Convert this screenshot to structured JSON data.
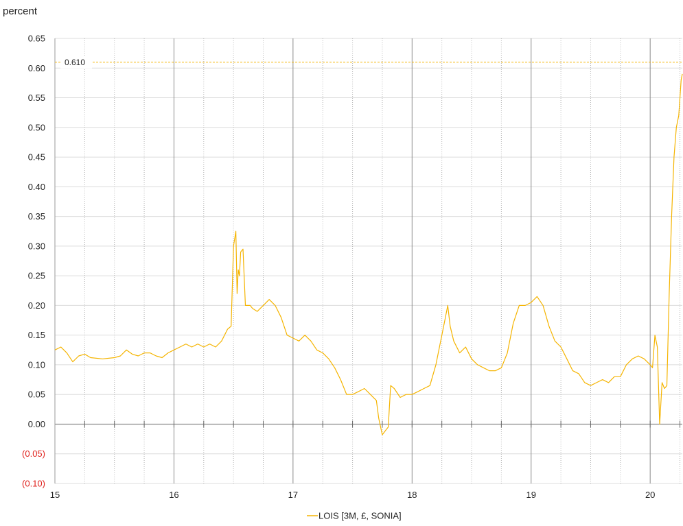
{
  "chart_data": {
    "type": "line",
    "ylabel": "percent",
    "xlim": [
      15,
      20.27
    ],
    "ylim": [
      -0.1,
      0.65
    ],
    "x_ticks": [
      15,
      16,
      17,
      18,
      19,
      20
    ],
    "x_tick_labels": [
      "15",
      "16",
      "17",
      "18",
      "19",
      "20"
    ],
    "x_minor_step": 0.25,
    "y_ticks": [
      0.65,
      0.6,
      0.55,
      0.5,
      0.45,
      0.4,
      0.35,
      0.3,
      0.25,
      0.2,
      0.15,
      0.1,
      0.05,
      0.0,
      -0.05,
      -0.1
    ],
    "y_tick_labels": [
      "0.65",
      "0.60",
      "0.55",
      "0.50",
      "0.45",
      "0.40",
      "0.35",
      "0.30",
      "0.25",
      "0.20",
      "0.15",
      "0.10",
      "0.05",
      "0.00",
      "(0.05)",
      "(0.10)"
    ],
    "negative_tick_color": "#e0201b",
    "grid": true,
    "reference_line": {
      "value": 0.61,
      "label": "0.610",
      "color": "#f5b400"
    },
    "legend_position": "bottom-center",
    "series": [
      {
        "name": "LOIS [3M, £, SONIA]",
        "color": "#f5b400",
        "x": [
          15.0,
          15.05,
          15.1,
          15.15,
          15.2,
          15.25,
          15.3,
          15.4,
          15.5,
          15.55,
          15.6,
          15.65,
          15.7,
          15.75,
          15.8,
          15.85,
          15.9,
          15.95,
          16.0,
          16.05,
          16.1,
          16.15,
          16.2,
          16.25,
          16.3,
          16.35,
          16.4,
          16.45,
          16.48,
          16.5,
          16.52,
          16.53,
          16.54,
          16.55,
          16.56,
          16.58,
          16.6,
          16.62,
          16.64,
          16.66,
          16.7,
          16.75,
          16.8,
          16.85,
          16.9,
          16.95,
          17.0,
          17.05,
          17.1,
          17.15,
          17.2,
          17.25,
          17.3,
          17.35,
          17.4,
          17.45,
          17.5,
          17.55,
          17.6,
          17.65,
          17.7,
          17.72,
          17.75,
          17.78,
          17.8,
          17.82,
          17.85,
          17.9,
          17.95,
          18.0,
          18.05,
          18.1,
          18.15,
          18.2,
          18.25,
          18.28,
          18.3,
          18.32,
          18.35,
          18.4,
          18.45,
          18.5,
          18.55,
          18.6,
          18.65,
          18.7,
          18.75,
          18.8,
          18.85,
          18.9,
          18.95,
          19.0,
          19.05,
          19.1,
          19.15,
          19.2,
          19.25,
          19.3,
          19.35,
          19.4,
          19.45,
          19.5,
          19.55,
          19.6,
          19.65,
          19.7,
          19.75,
          19.8,
          19.85,
          19.9,
          19.95,
          20.0,
          20.02,
          20.04,
          20.06,
          20.08,
          20.1,
          20.12,
          20.14,
          20.16,
          20.18,
          20.2,
          20.22,
          20.24,
          20.26,
          20.27
        ],
        "y": [
          0.125,
          0.13,
          0.12,
          0.105,
          0.115,
          0.118,
          0.112,
          0.11,
          0.112,
          0.115,
          0.125,
          0.118,
          0.115,
          0.12,
          0.12,
          0.115,
          0.112,
          0.12,
          0.125,
          0.13,
          0.135,
          0.13,
          0.135,
          0.13,
          0.135,
          0.13,
          0.14,
          0.16,
          0.165,
          0.3,
          0.325,
          0.22,
          0.26,
          0.25,
          0.29,
          0.295,
          0.2,
          0.2,
          0.2,
          0.195,
          0.19,
          0.2,
          0.21,
          0.2,
          0.18,
          0.15,
          0.145,
          0.14,
          0.15,
          0.14,
          0.125,
          0.12,
          0.11,
          0.095,
          0.075,
          0.05,
          0.05,
          0.055,
          0.06,
          0.05,
          0.04,
          0.01,
          -0.018,
          -0.01,
          -0.005,
          0.065,
          0.06,
          0.045,
          0.05,
          0.05,
          0.055,
          0.06,
          0.065,
          0.1,
          0.15,
          0.18,
          0.2,
          0.165,
          0.14,
          0.12,
          0.13,
          0.11,
          0.1,
          0.095,
          0.09,
          0.09,
          0.095,
          0.12,
          0.17,
          0.2,
          0.2,
          0.205,
          0.215,
          0.2,
          0.165,
          0.14,
          0.13,
          0.11,
          0.09,
          0.085,
          0.07,
          0.065,
          0.07,
          0.075,
          0.07,
          0.08,
          0.08,
          0.1,
          0.11,
          0.115,
          0.11,
          0.1,
          0.095,
          0.15,
          0.13,
          0.0,
          0.07,
          0.06,
          0.065,
          0.22,
          0.35,
          0.45,
          0.5,
          0.52,
          0.58,
          0.59
        ]
      }
    ]
  }
}
